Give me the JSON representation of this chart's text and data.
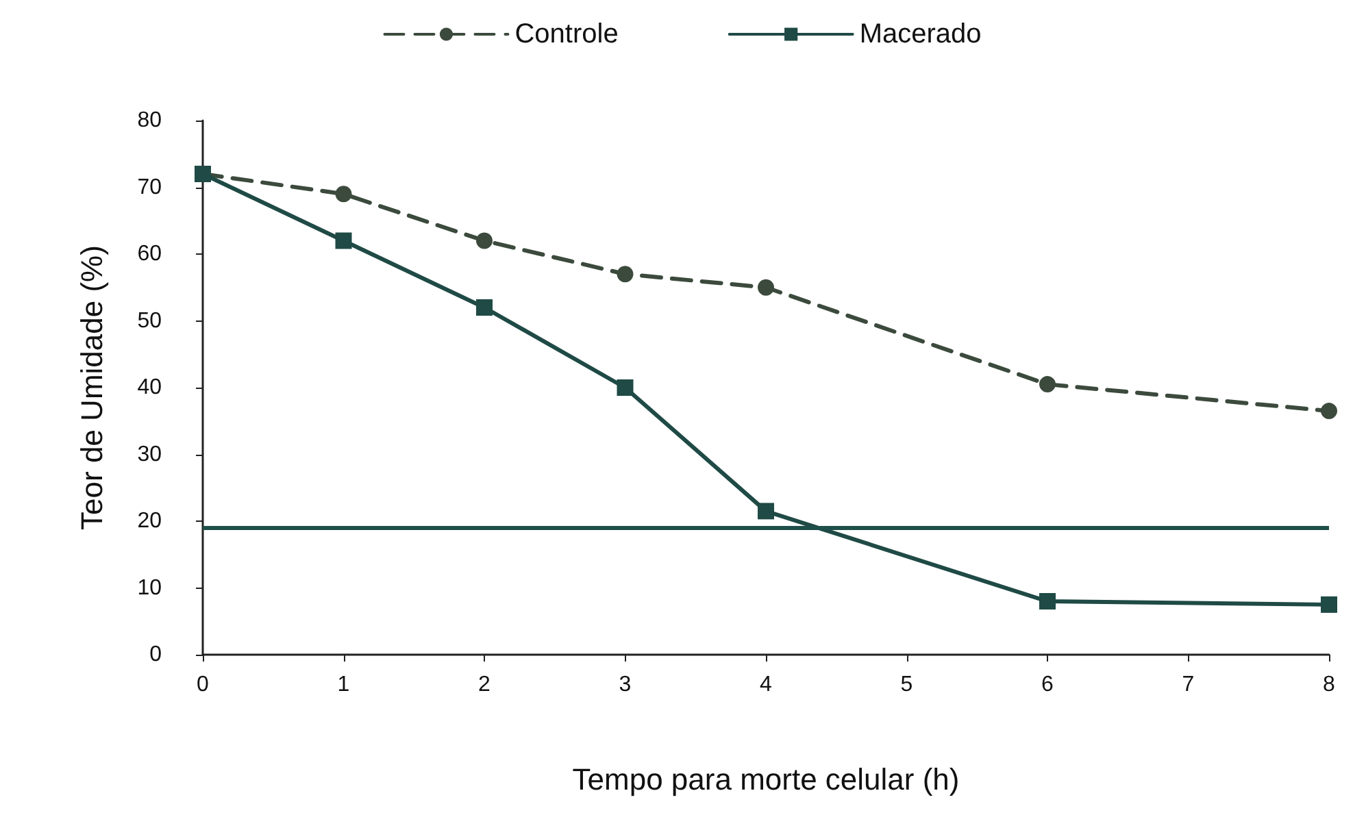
{
  "chart_data": {
    "type": "line",
    "xlabel": "Tempo para morte celular (h)",
    "ylabel": "Teor de Umidade (%)",
    "xlim": [
      0,
      8
    ],
    "xticks": [
      0,
      1,
      2,
      3,
      4,
      5,
      6,
      7,
      8
    ],
    "ylim": [
      0,
      80
    ],
    "yticks": [
      0,
      10,
      20,
      30,
      40,
      50,
      60,
      70,
      80
    ],
    "grid": false,
    "legend": "top",
    "series": [
      {
        "name": "Controle",
        "color": "#3b4a3c",
        "x": [
          0,
          1,
          2,
          3,
          4,
          6,
          8
        ],
        "values": [
          72,
          69,
          62,
          57,
          55,
          40.5,
          36.5
        ],
        "marker": "circle",
        "line_style": "dashed"
      },
      {
        "name": "Macerado",
        "color": "#1f4a45",
        "x": [
          0,
          1,
          2,
          3,
          4,
          6,
          8
        ],
        "values": [
          72,
          62,
          52,
          40,
          21.5,
          8,
          7.5
        ],
        "marker": "square",
        "line_style": "solid"
      }
    ],
    "ref_lines": [
      {
        "axis": "y",
        "value": 19,
        "color": "#1e4f4a",
        "line_style": "solid"
      }
    ]
  }
}
